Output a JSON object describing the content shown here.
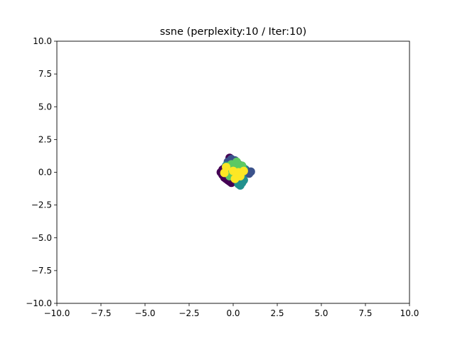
{
  "chart_data": {
    "type": "scatter",
    "title": "ssne (perplexity:10 / Iter:10)",
    "xlabel": "",
    "ylabel": "",
    "xlim": [
      -10,
      10
    ],
    "ylim": [
      -10,
      10
    ],
    "grid": false,
    "legend": "none",
    "x_ticks": [
      {
        "value": -10,
        "label": "−10.0"
      },
      {
        "value": -7.5,
        "label": "−7.5"
      },
      {
        "value": -5,
        "label": "−5.0"
      },
      {
        "value": -2.5,
        "label": "−2.5"
      },
      {
        "value": 0,
        "label": "0.0"
      },
      {
        "value": 2.5,
        "label": "2.5"
      },
      {
        "value": 5,
        "label": "5.0"
      },
      {
        "value": 7.5,
        "label": "7.5"
      },
      {
        "value": 10,
        "label": "10.0"
      }
    ],
    "y_ticks": [
      {
        "value": 10,
        "label": "10.0"
      },
      {
        "value": 7.5,
        "label": "7.5"
      },
      {
        "value": 5,
        "label": "5.0"
      },
      {
        "value": 2.5,
        "label": "2.5"
      },
      {
        "value": 0,
        "label": "0.0"
      },
      {
        "value": -2.5,
        "label": "−2.5"
      },
      {
        "value": -5,
        "label": "−5.0"
      },
      {
        "value": -7.5,
        "label": "−7.5"
      },
      {
        "value": -10,
        "label": "−10.0"
      }
    ],
    "colormap": [
      "#440154",
      "#3b528b",
      "#21908d",
      "#5dc963",
      "#fde725"
    ],
    "points": [
      {
        "x": -0.6,
        "y": 0.2,
        "c": 0
      },
      {
        "x": -0.7,
        "y": 0.0,
        "c": 0
      },
      {
        "x": -0.6,
        "y": -0.2,
        "c": 0
      },
      {
        "x": -0.5,
        "y": -0.4,
        "c": 0
      },
      {
        "x": -0.4,
        "y": -0.5,
        "c": 0
      },
      {
        "x": -0.3,
        "y": -0.6,
        "c": 0
      },
      {
        "x": -0.2,
        "y": -0.7,
        "c": 0
      },
      {
        "x": -0.1,
        "y": -0.8,
        "c": 0
      },
      {
        "x": -0.5,
        "y": 0.3,
        "c": 0
      },
      {
        "x": -0.2,
        "y": 1.1,
        "c": 0
      },
      {
        "x": 0.0,
        "y": 0.5,
        "c": 0
      },
      {
        "x": 0.2,
        "y": 0.1,
        "c": 0
      },
      {
        "x": -0.3,
        "y": 0.0,
        "c": 0
      },
      {
        "x": 0.1,
        "y": -0.4,
        "c": 0
      },
      {
        "x": 0.3,
        "y": 0.6,
        "c": 0
      },
      {
        "x": -0.4,
        "y": -0.1,
        "c": 0
      },
      {
        "x": 0.6,
        "y": 0.0,
        "c": 1
      },
      {
        "x": 0.8,
        "y": 0.05,
        "c": 1
      },
      {
        "x": 1.0,
        "y": 0.05,
        "c": 1
      },
      {
        "x": 0.7,
        "y": 0.2,
        "c": 1
      },
      {
        "x": 0.4,
        "y": 0.3,
        "c": 1
      },
      {
        "x": 0.2,
        "y": 0.7,
        "c": 1
      },
      {
        "x": -0.1,
        "y": 1.0,
        "c": 1
      },
      {
        "x": -0.3,
        "y": 0.8,
        "c": 1
      },
      {
        "x": 0.1,
        "y": 0.9,
        "c": 1
      },
      {
        "x": 0.5,
        "y": 0.4,
        "c": 1
      },
      {
        "x": 0.9,
        "y": -0.1,
        "c": 1
      },
      {
        "x": 0.3,
        "y": -0.1,
        "c": 1
      },
      {
        "x": -0.2,
        "y": 0.4,
        "c": 1
      },
      {
        "x": 0.4,
        "y": -0.7,
        "c": 2
      },
      {
        "x": 0.3,
        "y": -0.9,
        "c": 2
      },
      {
        "x": 0.5,
        "y": -0.8,
        "c": 2
      },
      {
        "x": 0.6,
        "y": -0.6,
        "c": 2
      },
      {
        "x": 0.4,
        "y": -1.0,
        "c": 2
      },
      {
        "x": 0.2,
        "y": -0.3,
        "c": 2
      },
      {
        "x": -0.1,
        "y": 0.2,
        "c": 2
      },
      {
        "x": 0.3,
        "y": 0.4,
        "c": 2
      },
      {
        "x": 0.6,
        "y": 0.3,
        "c": 2
      },
      {
        "x": 0.0,
        "y": -0.2,
        "c": 2
      },
      {
        "x": 0.5,
        "y": -0.4,
        "c": 2
      },
      {
        "x": -0.4,
        "y": 0.5,
        "c": 2
      },
      {
        "x": 0.1,
        "y": 0.6,
        "c": 3
      },
      {
        "x": 0.2,
        "y": 0.3,
        "c": 3
      },
      {
        "x": 0.4,
        "y": 0.1,
        "c": 3
      },
      {
        "x": -0.3,
        "y": 0.3,
        "c": 3
      },
      {
        "x": 0.0,
        "y": -0.1,
        "c": 3
      },
      {
        "x": 0.3,
        "y": -0.2,
        "c": 3
      },
      {
        "x": -0.2,
        "y": -0.3,
        "c": 3
      },
      {
        "x": 0.5,
        "y": 0.5,
        "c": 3
      },
      {
        "x": 0.2,
        "y": 0.8,
        "c": 3
      },
      {
        "x": -0.1,
        "y": 0.6,
        "c": 3
      },
      {
        "x": -0.4,
        "y": 0.4,
        "c": 4
      },
      {
        "x": 0.0,
        "y": 0.1,
        "c": 4
      },
      {
        "x": 0.3,
        "y": 0.0,
        "c": 4
      },
      {
        "x": -0.5,
        "y": -0.05,
        "c": 4
      },
      {
        "x": 0.6,
        "y": 0.1,
        "c": 4
      },
      {
        "x": 0.1,
        "y": -0.5,
        "c": 4
      },
      {
        "x": 0.4,
        "y": -0.3,
        "c": 4
      }
    ]
  }
}
